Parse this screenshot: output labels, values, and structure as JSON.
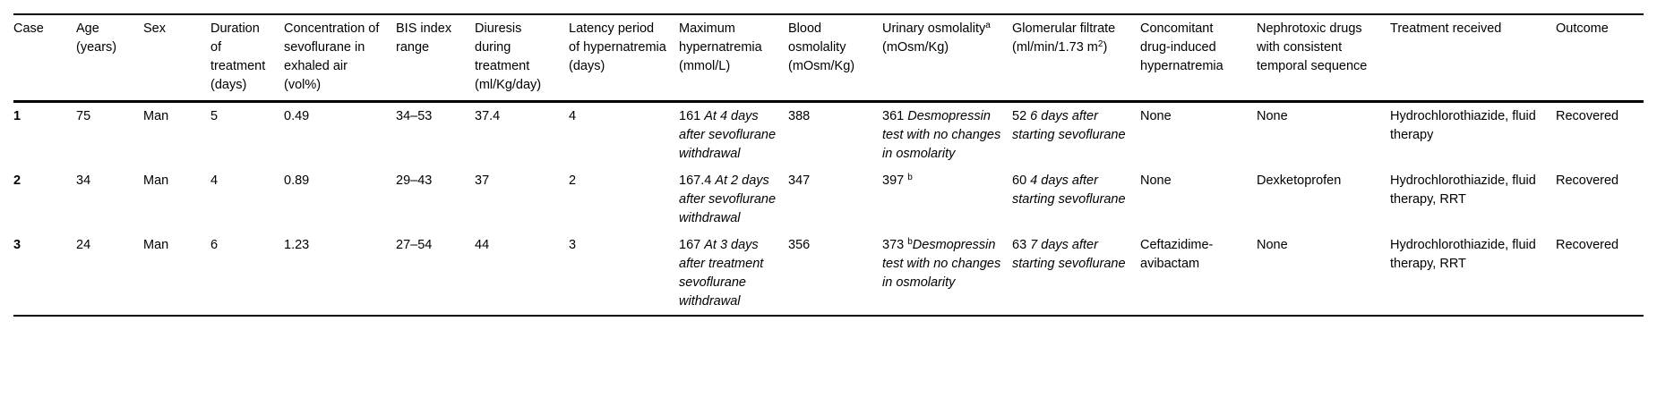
{
  "table": {
    "columns": [
      {
        "id": "case",
        "header": [
          "Case"
        ]
      },
      {
        "id": "age",
        "header": [
          "Age (years)"
        ]
      },
      {
        "id": "sex",
        "header": [
          "Sex"
        ]
      },
      {
        "id": "duration-of-treatment",
        "header": [
          "Duration of treatment (days)"
        ]
      },
      {
        "id": "sevoflurane-concentration",
        "header": [
          "Concentration of sevoflurane in exhaled air (vol%)"
        ]
      },
      {
        "id": "bis-index-range",
        "header": [
          "BIS index range"
        ]
      },
      {
        "id": "diuresis",
        "header": [
          "Diuresis during treatment (ml/Kg/day)"
        ]
      },
      {
        "id": "latency-period",
        "header": [
          "Latency period of hypernatremia (days)"
        ]
      },
      {
        "id": "maximum-hypernatremia",
        "header": [
          "Maximum hypernatremia (mmol/L)"
        ]
      },
      {
        "id": "blood-osmolality",
        "header": [
          "Blood osmolality (mOsm/Kg)"
        ]
      },
      {
        "id": "urinary-osmolality",
        "header": [
          "Urinary osmolality",
          {
            "sup": "a"
          },
          " (mOsm/Kg)"
        ]
      },
      {
        "id": "glomerular-filtrate",
        "header": [
          "Glomerular filtrate (ml/min/1.73 m",
          {
            "sup": "2"
          },
          ")"
        ]
      },
      {
        "id": "concomitant-drugs",
        "header": [
          "Concomitant drug-induced hypernatremia"
        ]
      },
      {
        "id": "nephrotoxic-drugs",
        "header": [
          "Nephrotoxic drugs with consistent temporal sequence"
        ]
      },
      {
        "id": "treatment-received",
        "header": [
          "Treatment received"
        ]
      },
      {
        "id": "outcome",
        "header": [
          "Outcome"
        ]
      }
    ],
    "rows": [
      {
        "id": "case-1",
        "cells": [
          [
            "1"
          ],
          [
            "75"
          ],
          [
            "Man"
          ],
          [
            "5"
          ],
          [
            "0.49"
          ],
          [
            "34–53"
          ],
          [
            "37.4"
          ],
          [
            "4"
          ],
          [
            "161 ",
            {
              "i": "At 4 days after sevoflurane withdrawal"
            }
          ],
          [
            "388"
          ],
          [
            "361 ",
            {
              "i": "Desmopressin test with no changes in osmolarity"
            }
          ],
          [
            "52 ",
            {
              "i": "6 days after starting sevoflurane"
            }
          ],
          [
            "None"
          ],
          [
            "None"
          ],
          [
            "Hydrochlorothiazide, fluid therapy"
          ],
          [
            "Recovered"
          ]
        ]
      },
      {
        "id": "case-2",
        "cells": [
          [
            "2"
          ],
          [
            "34"
          ],
          [
            "Man"
          ],
          [
            "4"
          ],
          [
            "0.89"
          ],
          [
            "29–43"
          ],
          [
            "37"
          ],
          [
            "2"
          ],
          [
            "167.4 ",
            {
              "i": "At 2 days after sevoflurane withdrawal"
            }
          ],
          [
            "347"
          ],
          [
            "397 ",
            {
              "sup": "b"
            }
          ],
          [
            "60 ",
            {
              "i": "4 days after starting sevoflurane"
            }
          ],
          [
            "None"
          ],
          [
            "Dexketoprofen"
          ],
          [
            "Hydrochlorothiazide, fluid therapy, RRT"
          ],
          [
            "Recovered"
          ]
        ]
      },
      {
        "id": "case-3",
        "cells": [
          [
            "3"
          ],
          [
            "24"
          ],
          [
            "Man"
          ],
          [
            "6"
          ],
          [
            "1.23"
          ],
          [
            "27–54"
          ],
          [
            "44"
          ],
          [
            "3"
          ],
          [
            "167 ",
            {
              "i": "At 3 days after treatment sevoflurane withdrawal"
            }
          ],
          [
            "356"
          ],
          [
            "373 ",
            {
              "sup": "b"
            },
            {
              "i": "Desmopressin test with no changes in osmolarity"
            }
          ],
          [
            "63 ",
            {
              "i": "7 days after starting sevoflurane"
            }
          ],
          [
            "Ceftazidime-avibactam"
          ],
          [
            "None"
          ],
          [
            "Hydrochlorothiazide, fluid therapy, RRT"
          ],
          [
            "Recovered"
          ]
        ]
      }
    ]
  }
}
